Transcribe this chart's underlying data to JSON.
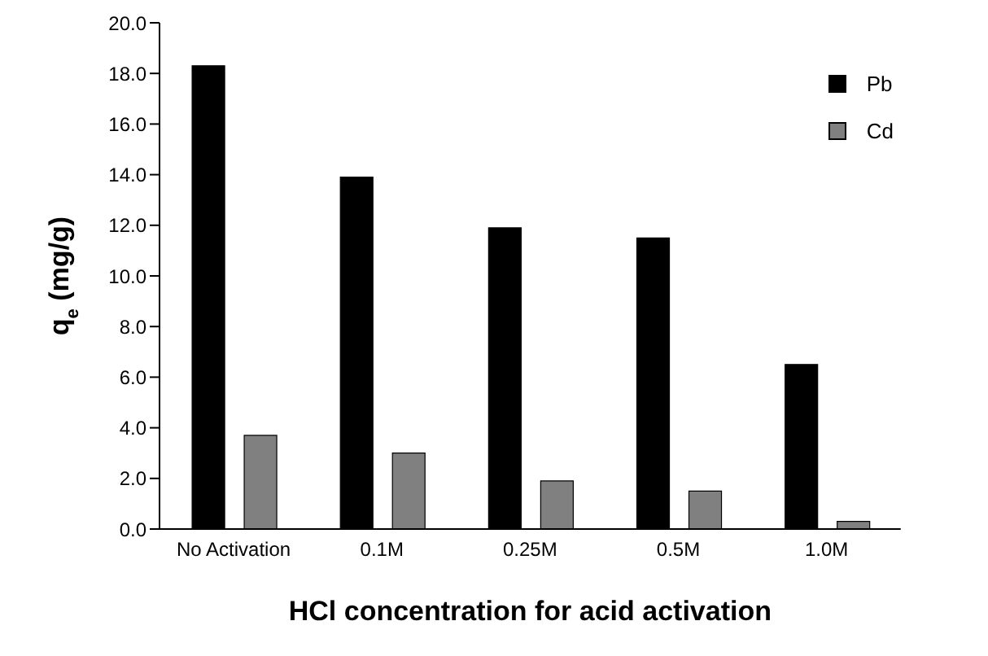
{
  "chart_data": {
    "type": "bar",
    "xlabel": "HCl concentration for acid activation",
    "ylabel": "q$_{e}$ (mg/g)",
    "categories": [
      "No Activation",
      "0.1M",
      "0.25M",
      "0.5M",
      "1.0M"
    ],
    "series": [
      {
        "name": "Pb",
        "color": "#000000",
        "values": [
          18.3,
          13.9,
          11.9,
          11.5,
          6.5
        ]
      },
      {
        "name": "Cd",
        "color": "#808080",
        "values": [
          3.7,
          3.0,
          1.9,
          1.5,
          0.3
        ]
      }
    ],
    "ylim": [
      0,
      20
    ],
    "yticks": [
      {
        "value": 0,
        "label": "0.0"
      },
      {
        "value": 2,
        "label": "2.0"
      },
      {
        "value": 4,
        "label": "4.0"
      },
      {
        "value": 6,
        "label": "6.0"
      },
      {
        "value": 8,
        "label": "8.0"
      },
      {
        "value": 10,
        "label": "10.0"
      },
      {
        "value": 12,
        "label": "12.0"
      },
      {
        "value": 14,
        "label": "14.0"
      },
      {
        "value": 16,
        "label": "16.0"
      },
      {
        "value": 18,
        "label": "18.0"
      },
      {
        "value": 20,
        "label": "20.0"
      }
    ],
    "grid": false,
    "legend": "top right"
  }
}
